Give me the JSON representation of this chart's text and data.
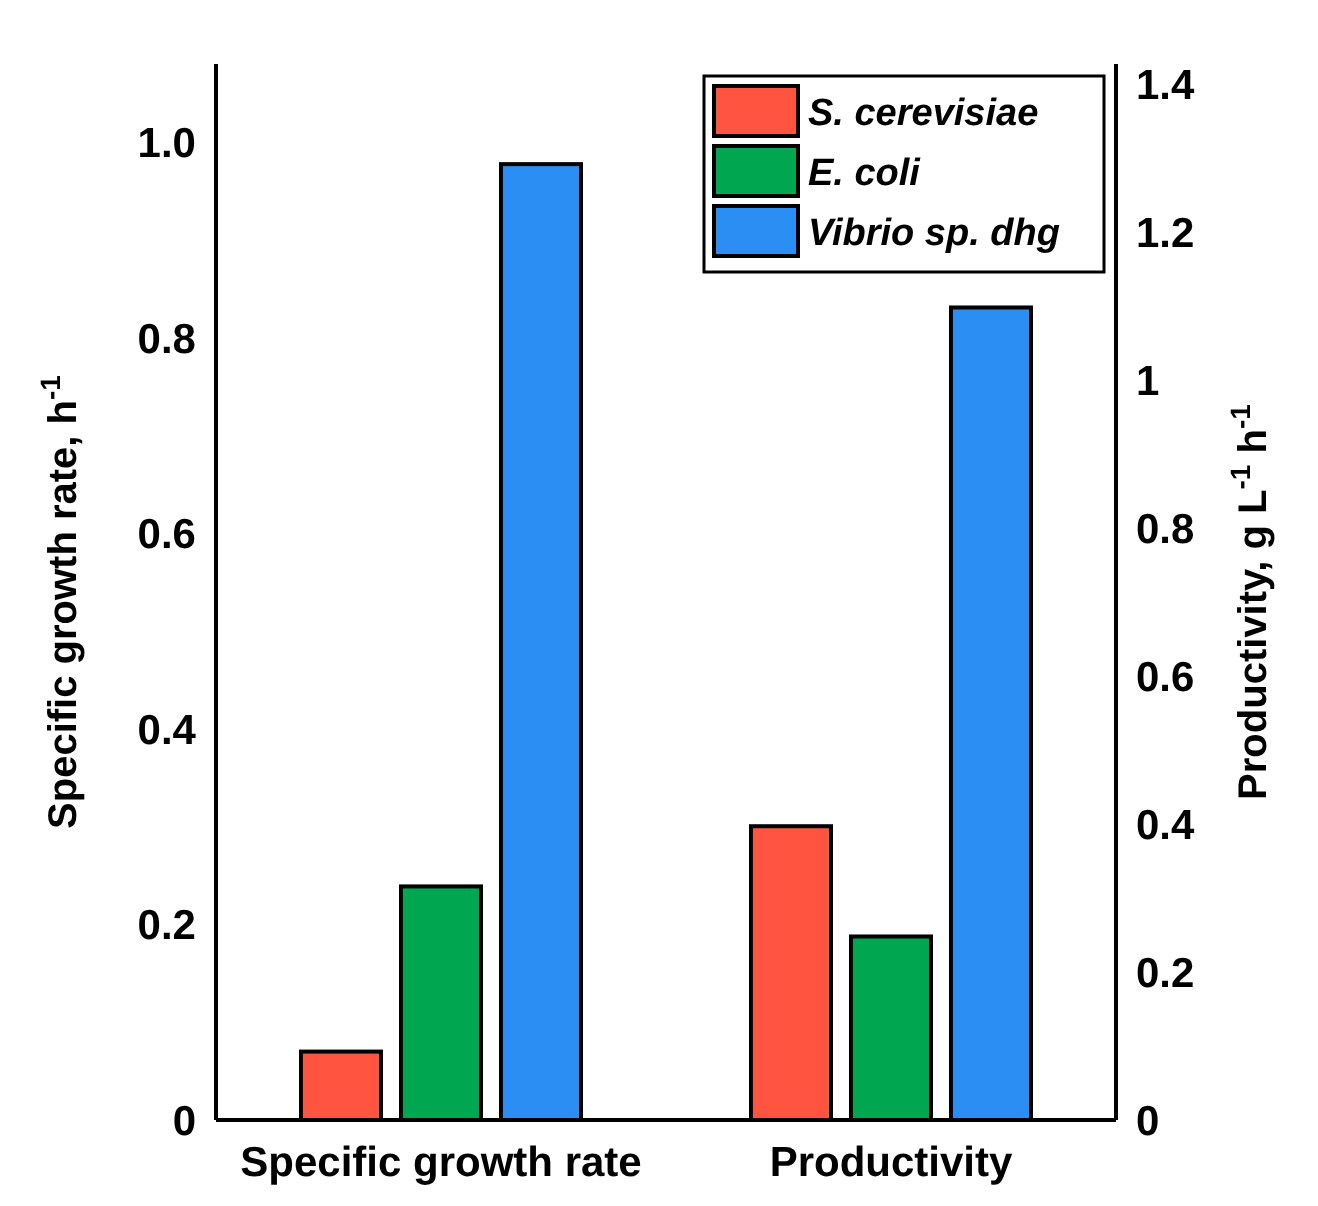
{
  "chart_data": {
    "type": "bar",
    "categories": [
      "Specific growth rate",
      "Productivity"
    ],
    "ylabel": "Specific growth rate, h$^{-1}$",
    "y2label": "Productivity, g L$^{-1}$ h$^{-1}$",
    "ylim": [
      0,
      1.06
    ],
    "yticks": [
      0,
      0.2,
      0.4,
      0.6,
      0.8,
      {
        "value": 1,
        "label": "1.0"
      }
    ],
    "y2lim": [
      0,
      1.4
    ],
    "y2ticks": [
      0,
      0.2,
      0.4,
      0.6,
      0.8,
      1,
      1.2,
      1.4
    ],
    "legend": "top right",
    "grid": false,
    "series": [
      {
        "name": "S. cerevisiae",
        "color": "#ff5540",
        "values": [
          0.07,
          null
        ]
      },
      {
        "name": "E. coli",
        "color": "#00a650",
        "values": [
          0.239,
          null
        ]
      },
      {
        "name": "Vibrio sp. dhg",
        "color": "#2b8ef2",
        "values": [
          0.978,
          null
        ]
      },
      {
        "color": "#ff5540",
        "values": [
          null,
          0.397
        ],
        "axis": "y2"
      },
      {
        "color": "#00a650",
        "values": [
          null,
          0.248
        ],
        "axis": "y2"
      },
      {
        "color": "#2b8ef2",
        "values": [
          null,
          1.098
        ],
        "axis": "y2"
      }
    ]
  }
}
